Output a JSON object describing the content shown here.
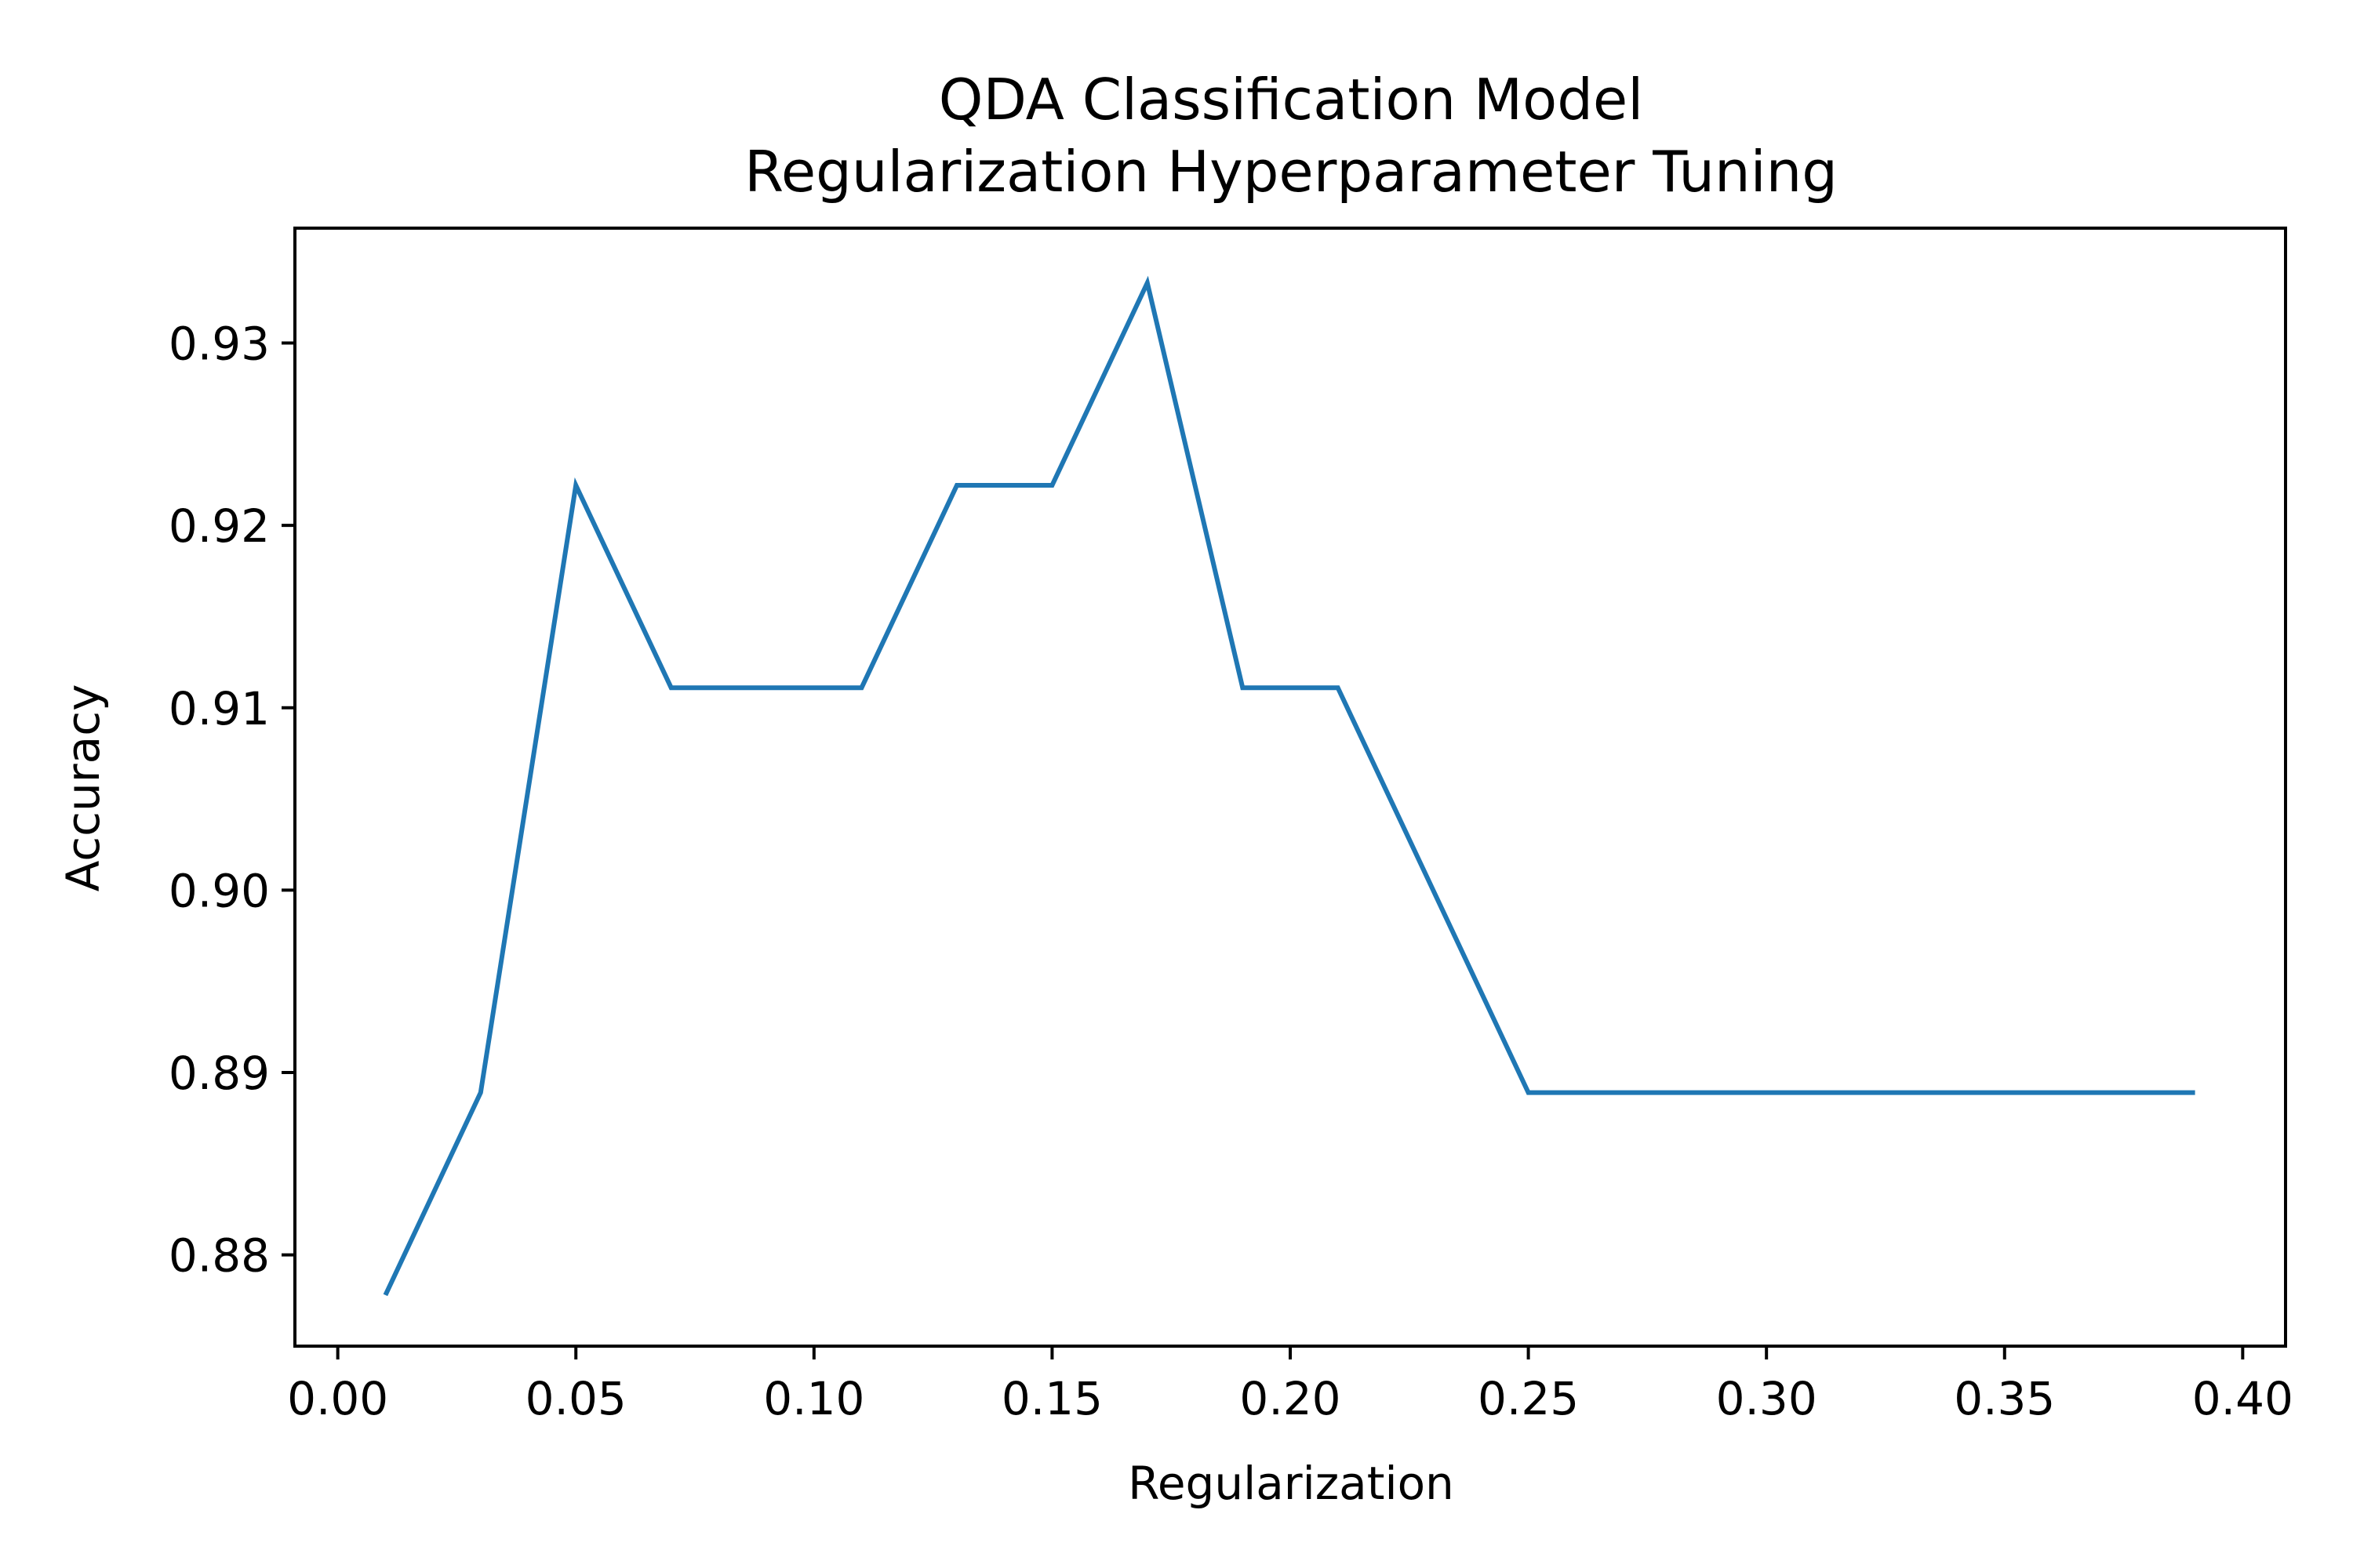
{
  "chart_data": {
    "type": "line",
    "title": "QDA Classification Model",
    "subtitle": "Regularization Hyperparameter Tuning",
    "xlabel": "Regularization",
    "ylabel": "Accuracy",
    "xlim": [
      -0.009,
      0.409
    ],
    "ylim": [
      0.875,
      0.9363
    ],
    "xticks": [
      0.0,
      0.05,
      0.1,
      0.15,
      0.2,
      0.25,
      0.3,
      0.35,
      0.4
    ],
    "xtick_labels": [
      "0.00",
      "0.05",
      "0.10",
      "0.15",
      "0.20",
      "0.25",
      "0.30",
      "0.35",
      "0.40"
    ],
    "yticks": [
      0.88,
      0.89,
      0.9,
      0.91,
      0.92,
      0.93
    ],
    "ytick_labels": [
      "0.88",
      "0.89",
      "0.90",
      "0.91",
      "0.92",
      "0.93"
    ],
    "grid": false,
    "series": [
      {
        "color": "#1f77b4",
        "x": [
          0.01,
          0.03,
          0.05,
          0.07,
          0.09,
          0.11,
          0.13,
          0.15,
          0.17,
          0.19,
          0.21,
          0.23,
          0.25,
          0.27,
          0.29,
          0.31,
          0.33,
          0.35,
          0.37,
          0.39
        ],
        "y": [
          0.8778,
          0.8889,
          0.9222,
          0.9111,
          0.9111,
          0.9111,
          0.9222,
          0.9222,
          0.9333,
          0.9111,
          0.9111,
          0.9,
          0.8889,
          0.8889,
          0.8889,
          0.8889,
          0.8889,
          0.8889,
          0.8889,
          0.8889
        ]
      }
    ]
  }
}
